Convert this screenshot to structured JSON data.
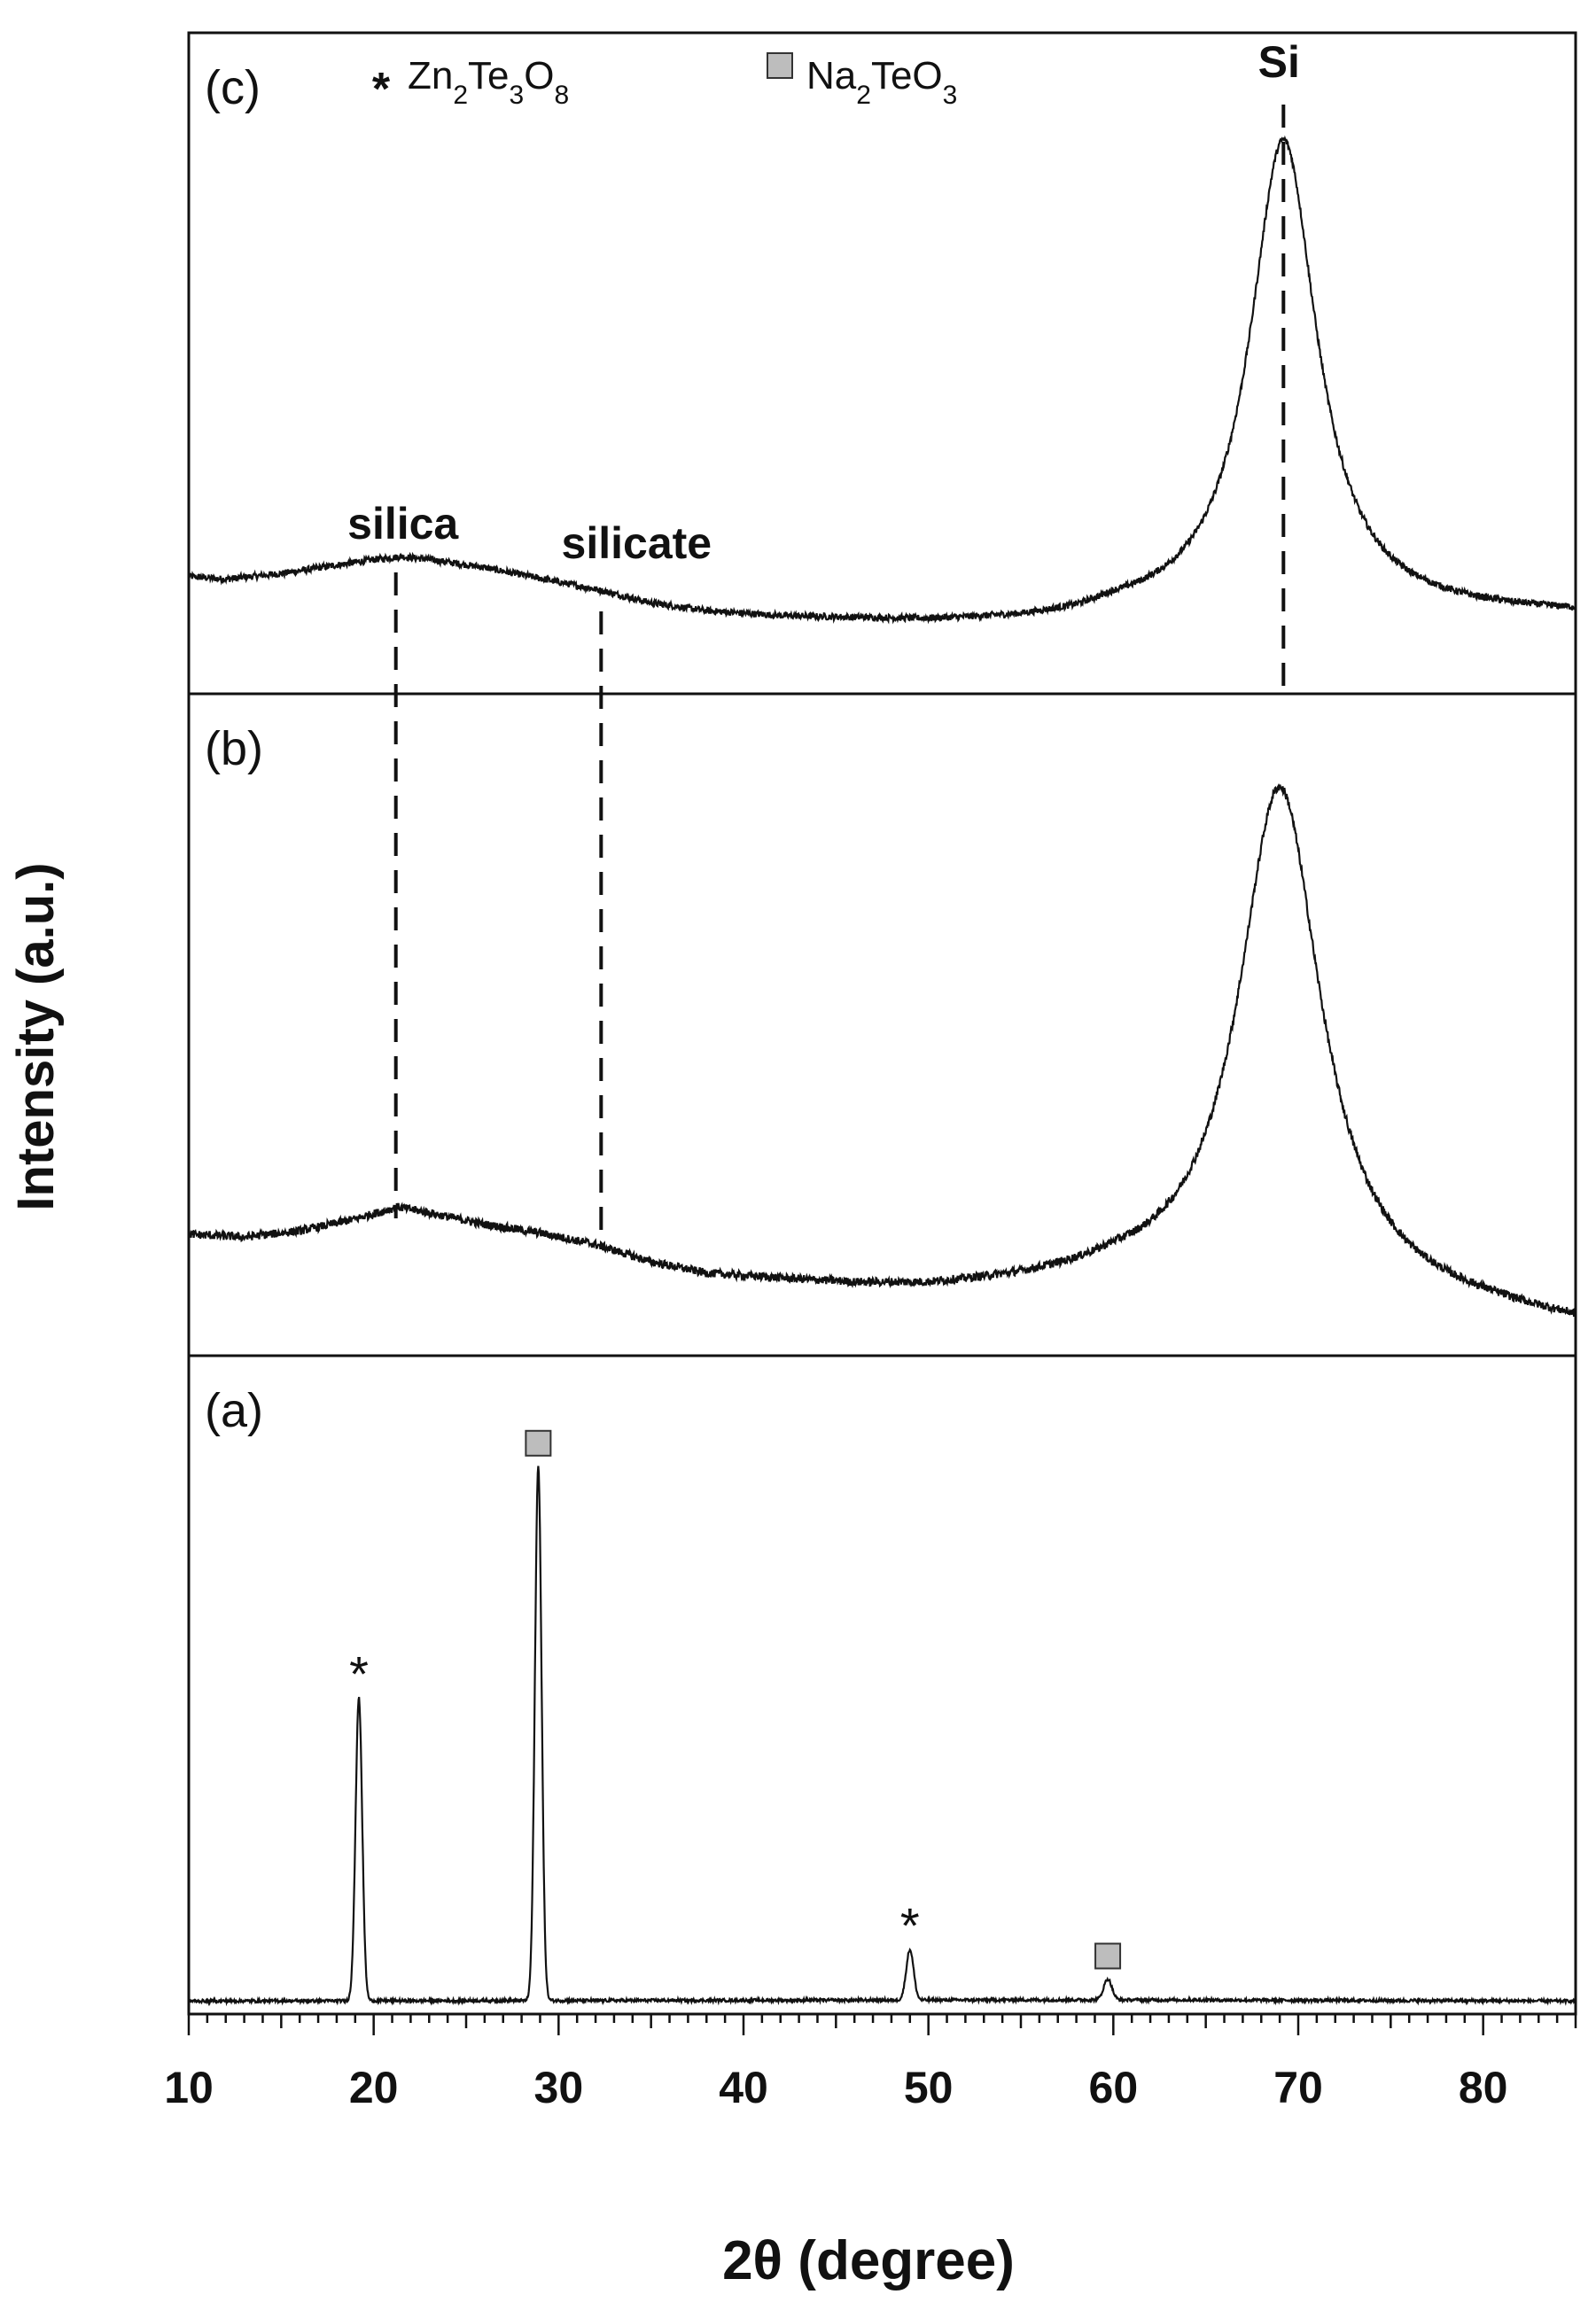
{
  "chart_data": {
    "type": "line",
    "xlabel": "2θ (degree)",
    "ylabel": "Intensity (a.u.)",
    "xlim": [
      10,
      85
    ],
    "xticks": [
      "10",
      "20",
      "30",
      "40",
      "50",
      "60",
      "70",
      "80"
    ],
    "legend": [
      {
        "symbol": "*",
        "label": "Zn2Te3O8",
        "parts": [
          [
            "Zn",
            ""
          ],
          [
            "2",
            "sub"
          ],
          [
            "Te",
            ""
          ],
          [
            "3",
            "sub"
          ],
          [
            "O",
            ""
          ],
          [
            "8",
            "sub"
          ]
        ]
      },
      {
        "symbol": "square",
        "label": "Na2TeO3",
        "parts": [
          [
            "Na",
            ""
          ],
          [
            "2",
            "sub"
          ],
          [
            "TeO",
            ""
          ],
          [
            "3",
            "sub"
          ]
        ]
      }
    ],
    "panels": [
      {
        "panel_label": "(c)",
        "ylim": [
          0,
          1
        ],
        "baseline": [
          [
            10,
            0.15
          ],
          [
            12,
            0.145
          ],
          [
            15,
            0.155
          ],
          [
            18,
            0.17
          ],
          [
            20,
            0.18
          ],
          [
            21.5,
            0.185
          ],
          [
            23,
            0.18
          ],
          [
            26,
            0.165
          ],
          [
            29,
            0.145
          ],
          [
            32,
            0.125
          ],
          [
            35,
            0.1
          ],
          [
            38,
            0.085
          ],
          [
            42,
            0.075
          ],
          [
            46,
            0.07
          ],
          [
            50,
            0.065
          ],
          [
            55,
            0.065
          ],
          [
            58,
            0.07
          ],
          [
            60,
            0.08
          ]
        ],
        "peaks": [
          {
            "center": 69.2,
            "height": 0.86,
            "width": 2.2
          }
        ],
        "noise": 0.006,
        "annotations": [
          {
            "text": "silica",
            "x": 21.2
          },
          {
            "text": "silicate",
            "x": 32.3
          },
          {
            "text": "Si",
            "x": 69.2
          }
        ]
      },
      {
        "panel_label": "(b)",
        "ylim": [
          0,
          1
        ],
        "baseline": [
          [
            10,
            0.17
          ],
          [
            13,
            0.165
          ],
          [
            16,
            0.175
          ],
          [
            19,
            0.195
          ],
          [
            21.3,
            0.215
          ],
          [
            23,
            0.205
          ],
          [
            26,
            0.185
          ],
          [
            29,
            0.17
          ],
          [
            32,
            0.15
          ],
          [
            35,
            0.12
          ],
          [
            38,
            0.1
          ],
          [
            42,
            0.09
          ],
          [
            46,
            0.08
          ],
          [
            50,
            0.075
          ],
          [
            55,
            0.08
          ],
          [
            58,
            0.085
          ],
          [
            60,
            0.09
          ],
          [
            80,
            0.035
          ],
          [
            85,
            0.015
          ]
        ],
        "peaks": [
          {
            "center": 69.0,
            "height": 0.86,
            "width": 2.7
          }
        ],
        "noise": 0.007,
        "annotations": []
      },
      {
        "panel_label": "(a)",
        "ylim": [
          0,
          1
        ],
        "baseline": [
          [
            10,
            0.01
          ],
          [
            60,
            0.012
          ],
          [
            85,
            0.01
          ]
        ],
        "peaks": [
          {
            "center": 19.2,
            "height": 0.51,
            "width": 0.18,
            "marker": "*"
          },
          {
            "center": 28.9,
            "height": 0.9,
            "width": 0.18,
            "marker": "square"
          },
          {
            "center": 49.0,
            "height": 0.085,
            "width": 0.2,
            "marker": "*"
          },
          {
            "center": 59.7,
            "height": 0.035,
            "width": 0.22,
            "marker": "square"
          }
        ],
        "noise": 0.0025,
        "annotations": []
      }
    ],
    "reference_lines": [
      {
        "x": 21.2,
        "label": "silica"
      },
      {
        "x": 32.3,
        "label": "silicate"
      },
      {
        "x": 69.2,
        "label": "Si"
      }
    ]
  }
}
